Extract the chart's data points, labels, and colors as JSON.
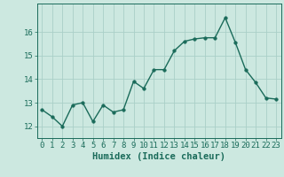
{
  "x": [
    0,
    1,
    2,
    3,
    4,
    5,
    6,
    7,
    8,
    9,
    10,
    11,
    12,
    13,
    14,
    15,
    16,
    17,
    18,
    19,
    20,
    21,
    22,
    23
  ],
  "y": [
    12.7,
    12.4,
    12.0,
    12.9,
    13.0,
    12.2,
    12.9,
    12.6,
    12.7,
    13.9,
    13.6,
    14.4,
    14.4,
    15.2,
    15.6,
    15.7,
    15.75,
    15.75,
    16.6,
    15.55,
    14.4,
    13.85,
    13.2,
    13.15
  ],
  "line_color": "#1a6b5a",
  "marker_color": "#1a6b5a",
  "bg_color": "#cce8e0",
  "grid_color": "#aacfc8",
  "tick_color": "#1a6b5a",
  "xlabel": "Humidex (Indice chaleur)",
  "xlabel_color": "#1a6b5a",
  "ylim": [
    11.5,
    17.2
  ],
  "yticks": [
    12,
    13,
    14,
    15,
    16
  ],
  "xticks": [
    0,
    1,
    2,
    3,
    4,
    5,
    6,
    7,
    8,
    9,
    10,
    11,
    12,
    13,
    14,
    15,
    16,
    17,
    18,
    19,
    20,
    21,
    22,
    23
  ],
  "font_size": 6.5,
  "xlabel_fontsize": 7.5,
  "line_width": 1.0,
  "marker_size": 2.5
}
